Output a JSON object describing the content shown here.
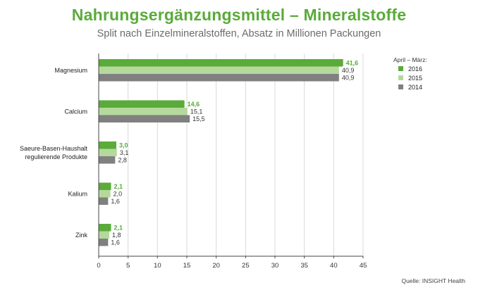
{
  "title": "Nahrungsergänzungsmittel – Mineralstoffe",
  "subtitle": "Split nach Einzelmineralstoffen, Absatz in Millionen Packungen",
  "source": "Quelle: INSIGHT Health",
  "chart_data": {
    "type": "bar",
    "orientation": "horizontal",
    "categories": [
      [
        "Magnesium"
      ],
      [
        "Calcium"
      ],
      [
        "Saeure-Basen-Haushalt",
        "regulierende Produkte"
      ],
      [
        "Kalium"
      ],
      [
        "Zink"
      ]
    ],
    "series": [
      {
        "name": "2016",
        "color": "#5aab3a",
        "values": [
          41.6,
          14.6,
          3.0,
          2.1,
          2.1
        ],
        "labels": [
          "41,6",
          "14,6",
          "3,0",
          "2,1",
          "2,1"
        ]
      },
      {
        "name": "2015",
        "color": "#b5d99c",
        "values": [
          40.9,
          15.1,
          3.1,
          2.0,
          1.8
        ],
        "labels": [
          "40,9",
          "15,1",
          "3,1",
          "2,0",
          "1,8"
        ]
      },
      {
        "name": "2014",
        "color": "#808080",
        "values": [
          40.9,
          15.5,
          2.8,
          1.6,
          1.6
        ],
        "labels": [
          "40,9",
          "15,5",
          "2,8",
          "1,6",
          "1,6"
        ]
      }
    ],
    "xlim": [
      0,
      45
    ],
    "xticks": [
      0,
      5,
      10,
      15,
      20,
      25,
      30,
      35,
      40,
      45
    ],
    "grid": true,
    "legend": {
      "title": "April – März:",
      "position": "right"
    }
  }
}
